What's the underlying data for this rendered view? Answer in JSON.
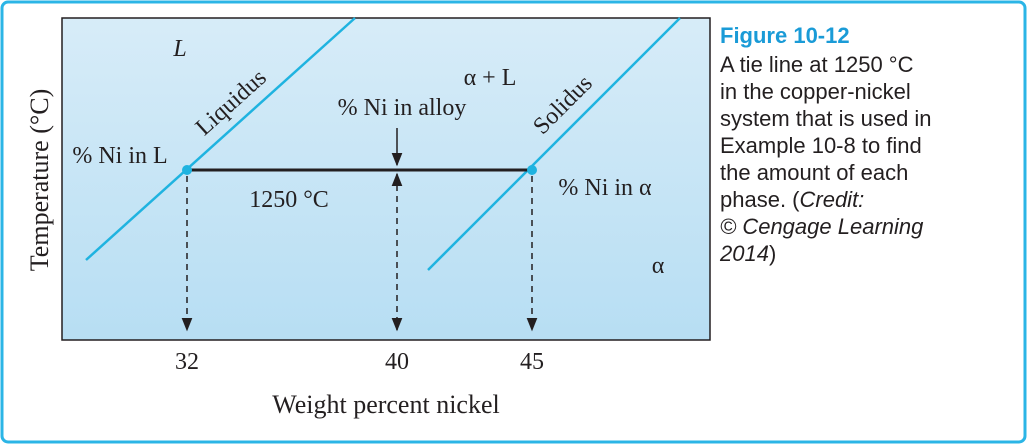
{
  "diagram": {
    "y_axis_label": "Temperature (°C)",
    "x_axis_label": "Weight percent nickel",
    "x_labels": [
      32,
      40,
      45
    ],
    "regions": {
      "liquid": "L",
      "two_phase": "α + L",
      "solid": "α"
    },
    "curves": {
      "liquidus": "Liquidus",
      "solidus": "Solidus"
    },
    "annotations": {
      "ni_in_liquid": "% Ni in L",
      "ni_in_alloy": "% Ni in alloy",
      "ni_in_solid": "% Ni in α",
      "temperature": "1250 °C"
    }
  },
  "caption": {
    "title": "Figure 10-12",
    "lines": [
      "A tie line at 1250 °C",
      "in the copper-nickel",
      "system that is used in",
      "Example 10-8 to find",
      "the amount of each",
      "phase. ("
    ],
    "credit_label": "Credit:",
    "credit_lines": [
      "© Cengage Learning",
      "2014"
    ],
    "close": ")"
  }
}
